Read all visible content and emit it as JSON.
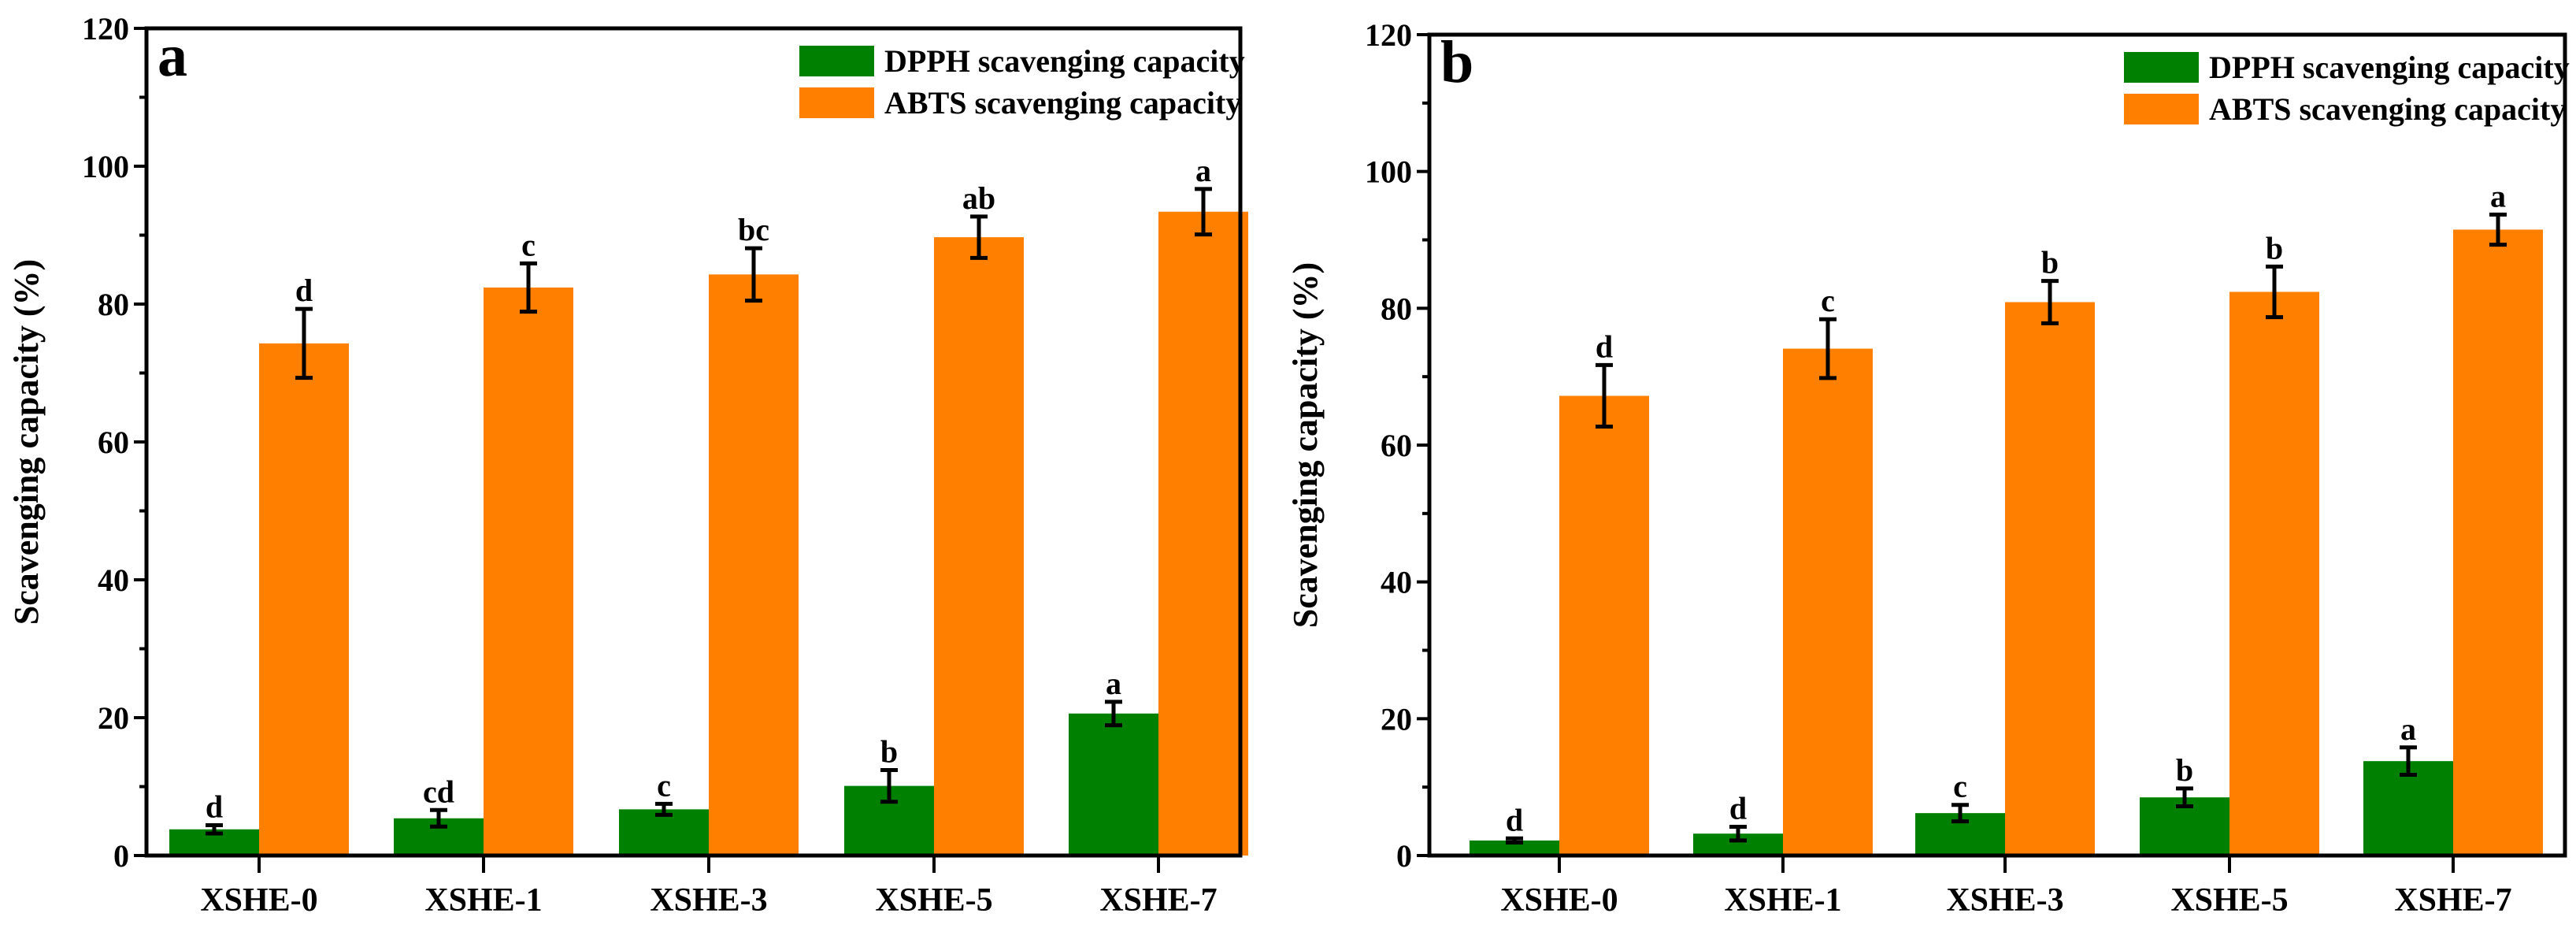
{
  "colors": {
    "dpph": "#008000",
    "abts": "#FF8000",
    "axis": "#000000"
  },
  "chart_data": [
    {
      "type": "bar",
      "panel_label": "a",
      "categories": [
        "XSHE-0",
        "XSHE-1",
        "XSHE-3",
        "XSHE-5",
        "XSHE-7"
      ],
      "ylabel": "Scavenging capacity (%)",
      "xlabel": "",
      "ylim": [
        0,
        120
      ],
      "yticks": [
        "0",
        "20",
        "40",
        "60",
        "80",
        "100",
        "120"
      ],
      "legend": "top-right",
      "grid": false,
      "series": [
        {
          "name": "DPPH scavenging capacity",
          "values": [
            3.8,
            5.4,
            6.7,
            10.1,
            20.6
          ],
          "errors": [
            0.6,
            1.2,
            0.8,
            2.3,
            1.7
          ],
          "letters": [
            "d",
            "cd",
            "c",
            "b",
            "a"
          ]
        },
        {
          "name": "ABTS scavenging capacity",
          "values": [
            74.3,
            82.4,
            84.3,
            89.7,
            93.4
          ],
          "errors": [
            5.0,
            3.5,
            3.8,
            3.0,
            3.3
          ],
          "letters": [
            "d",
            "c",
            "bc",
            "ab",
            "a"
          ]
        }
      ]
    },
    {
      "type": "bar",
      "panel_label": "b",
      "categories": [
        "XSHE-0",
        "XSHE-1",
        "XSHE-3",
        "XSHE-5",
        "XSHE-7"
      ],
      "ylabel": "Scavenging capacity (%)",
      "xlabel": "",
      "ylim": [
        0,
        120
      ],
      "yticks": [
        "0",
        "20",
        "40",
        "60",
        "80",
        "100",
        "120"
      ],
      "legend": "top-right",
      "grid": false,
      "series": [
        {
          "name": "DPPH scavenging capacity",
          "values": [
            2.2,
            3.2,
            6.2,
            8.5,
            13.8
          ],
          "errors": [
            0.3,
            1.0,
            1.2,
            1.3,
            2.0
          ],
          "letters": [
            "d",
            "d",
            "c",
            "b",
            "a"
          ]
        },
        {
          "name": "ABTS scavenging capacity",
          "values": [
            67.2,
            74.1,
            80.9,
            82.4,
            91.5
          ],
          "errors": [
            4.5,
            4.3,
            3.1,
            3.7,
            2.2
          ],
          "letters": [
            "d",
            "c",
            "b",
            "b",
            "a"
          ]
        }
      ]
    }
  ]
}
